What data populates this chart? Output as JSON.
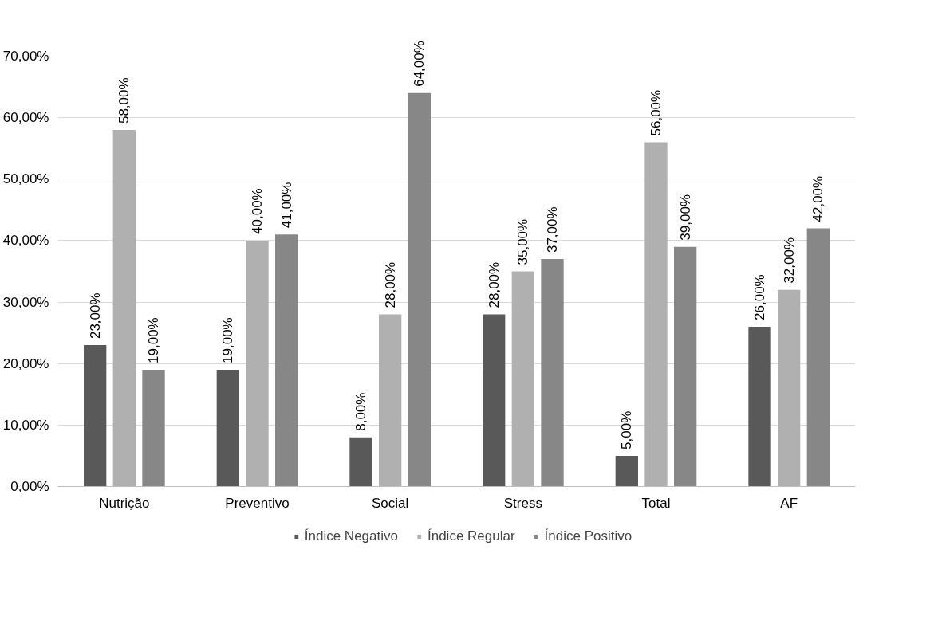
{
  "chart_data": {
    "type": "bar",
    "categories": [
      "Nutrição",
      "Preventivo",
      "Social",
      "Stress",
      "Total",
      "AF"
    ],
    "series": [
      {
        "name": "Índice Negativo",
        "color": "#595959",
        "values": [
          23,
          19,
          8,
          28,
          5,
          26
        ],
        "value_labels": [
          "23,00%",
          "19,00%",
          "8,00%",
          "28,00%",
          "5,00%",
          "26,00%"
        ]
      },
      {
        "name": "Índice Regular",
        "color": "#b0b0b0",
        "values": [
          58,
          40,
          28,
          35,
          56,
          32
        ],
        "value_labels": [
          "58,00%",
          "40,00%",
          "28,00%",
          "35,00%",
          "56,00%",
          "32,00%"
        ]
      },
      {
        "name": "Índice Positivo",
        "color": "#878787",
        "values": [
          19,
          41,
          64,
          37,
          39,
          42
        ],
        "value_labels": [
          "19,00%",
          "41,00%",
          "64,00%",
          "37,00%",
          "39,00%",
          "42,00%"
        ]
      }
    ],
    "ylim": [
      0,
      70
    ],
    "yticks": [
      {
        "value": 0,
        "label": "0,00%"
      },
      {
        "value": 10,
        "label": "10,00%"
      },
      {
        "value": 20,
        "label": "20,00%"
      },
      {
        "value": 30,
        "label": "30,00%"
      },
      {
        "value": 40,
        "label": "40,00%"
      },
      {
        "value": 50,
        "label": "50,00%"
      },
      {
        "value": 60,
        "label": "60,00%"
      },
      {
        "value": 70,
        "label": "70,00%"
      }
    ],
    "grid": "y",
    "legend": "bottom"
  }
}
